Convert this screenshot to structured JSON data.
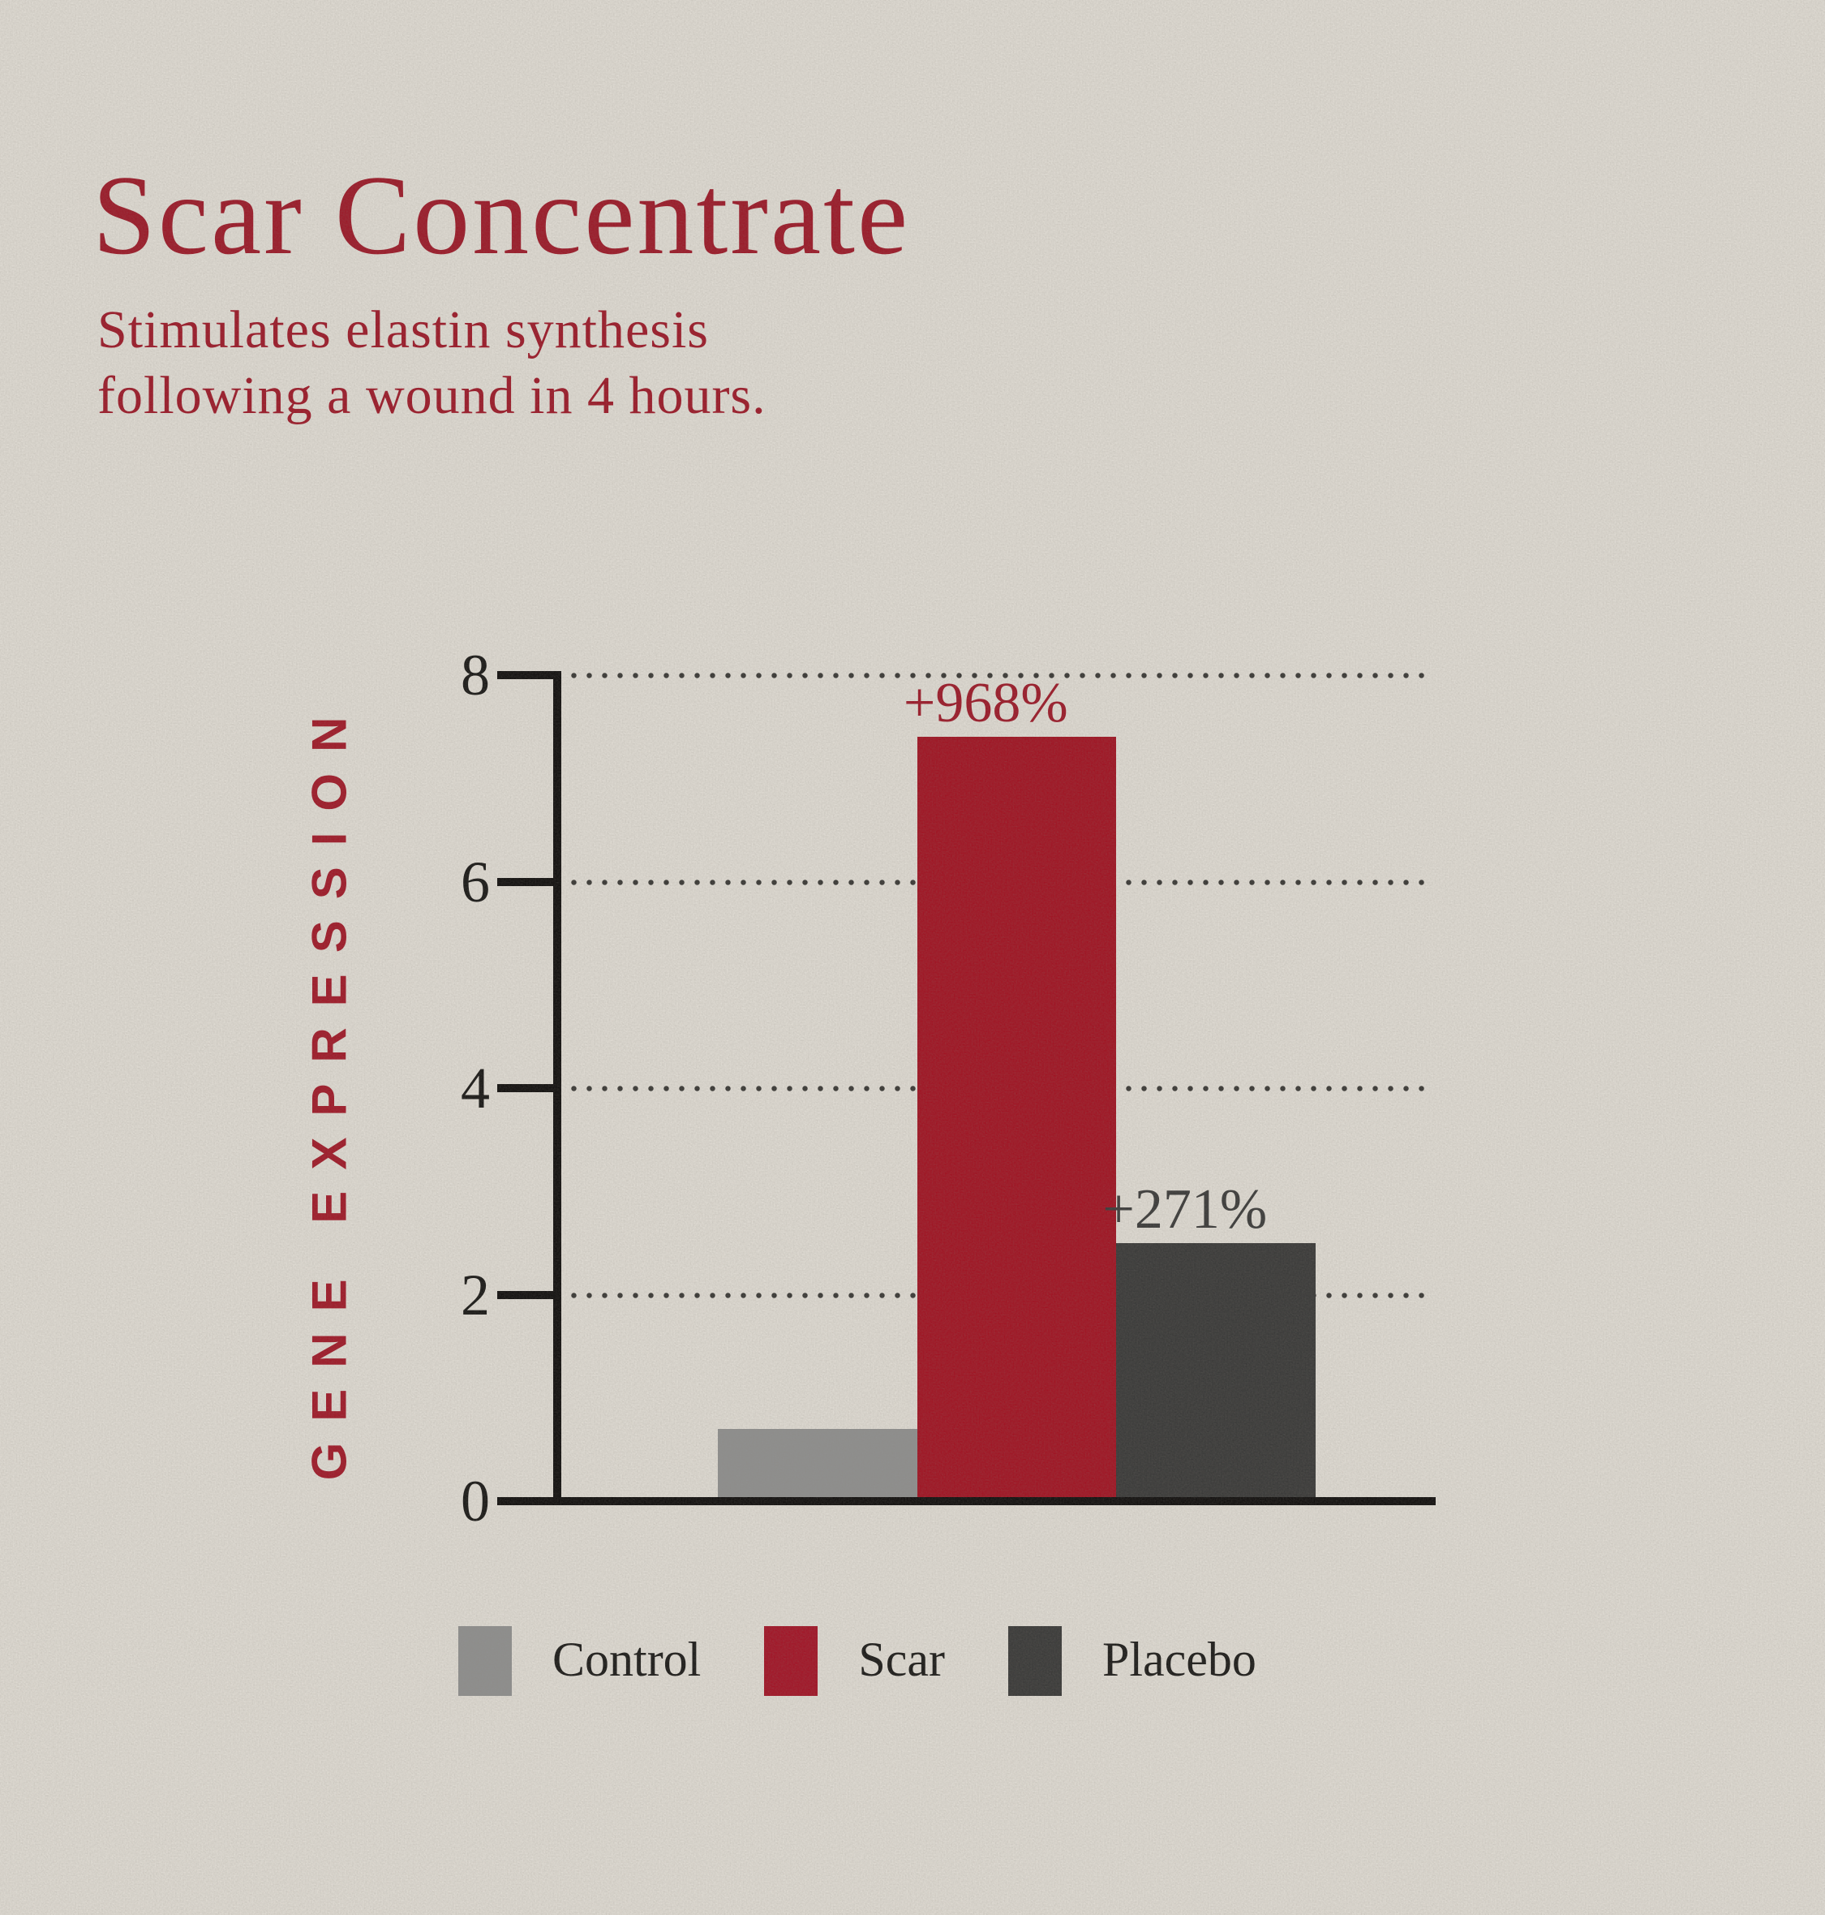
{
  "header": {
    "title": "Scar Concentrate",
    "subtitle_line1": "Stimulates elastin synthesis",
    "subtitle_line2": "following a wound in 4 hours."
  },
  "chart_data": {
    "type": "bar",
    "title": "Scar Concentrate",
    "ylabel": "GENE EXPRESSION",
    "xlabel": "",
    "ylim": [
      0,
      8
    ],
    "yticks": [
      0,
      2,
      4,
      6,
      8
    ],
    "grid": "horizontal-dotted",
    "categories": [
      "Control",
      "Scar",
      "Placebo"
    ],
    "values": [
      0.7,
      7.4,
      2.5
    ],
    "bar_labels": [
      "",
      "+968%",
      "+271%"
    ],
    "bar_colors": [
      "#8f8f8e",
      "#a01524",
      "#3b3b3a"
    ],
    "bar_label_colors": [
      "",
      "#9c1b2a",
      "#3d3d3c"
    ],
    "legend_position": "bottom",
    "legend": [
      {
        "label": "Control",
        "color": "#8f8f8e"
      },
      {
        "label": "Scar",
        "color": "#a21628"
      },
      {
        "label": "Placebo",
        "color": "#3b3b3a"
      }
    ]
  },
  "colors": {
    "background": "#dedad2",
    "accent_red_text": "#9c1b2a",
    "accent_red_bar": "#a01524",
    "axis": "#131110",
    "tick_text": "#1b1a18",
    "grid_dots": "#3b3a37",
    "legend_text": "#1e1d1b"
  }
}
